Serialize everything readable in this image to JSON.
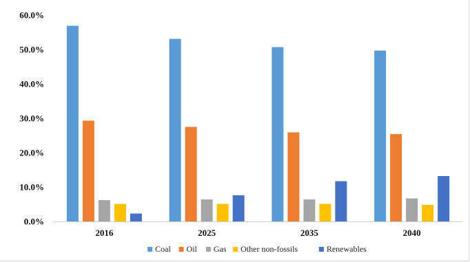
{
  "chart_data": {
    "type": "bar",
    "categories": [
      "2016",
      "2025",
      "2035",
      "2040"
    ],
    "series": [
      {
        "name": "Coal",
        "color": "#5B9BD5",
        "values": [
          56.9,
          53.1,
          50.7,
          49.7
        ]
      },
      {
        "name": "Oil",
        "color": "#ED7D31",
        "values": [
          29.3,
          27.5,
          25.9,
          25.4
        ]
      },
      {
        "name": "Gas",
        "color": "#A5A5A5",
        "values": [
          6.2,
          6.4,
          6.4,
          6.7
        ]
      },
      {
        "name": "Other non-fossils",
        "color": "#FFC000",
        "values": [
          5.1,
          5.1,
          5.1,
          4.8
        ]
      },
      {
        "name": "Renewables",
        "color": "#4472C4",
        "values": [
          2.3,
          7.6,
          11.7,
          13.2
        ]
      }
    ],
    "y_ticks": [
      "0.0%",
      "10.0%",
      "20.0%",
      "30.0%",
      "40.0%",
      "50.0%",
      "60.0%"
    ],
    "ylim": [
      0,
      60
    ],
    "grid": false,
    "legend_position": "bottom",
    "title": "",
    "xlabel": "",
    "ylabel": ""
  }
}
